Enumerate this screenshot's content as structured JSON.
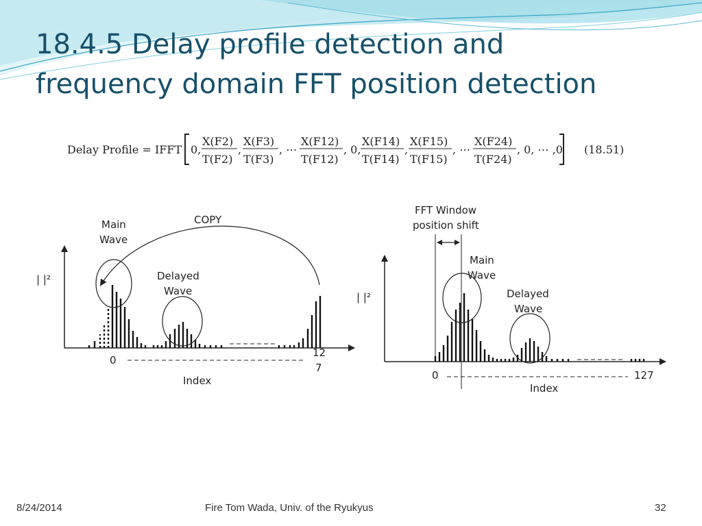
{
  "title": {
    "line1": "18.4.5 Delay profile detection and",
    "line2": "frequency domain FFT position detection"
  },
  "formula": {
    "lhs": "Delay Profile = IFFT",
    "open": "0,",
    "terms": [
      {
        "num": "X(F2)",
        "den": "T(F2)"
      },
      {
        "num": "X(F3)",
        "den": "T(F3)"
      },
      {
        "num": "X(F12)",
        "den": "T(F12)"
      },
      {
        "num": "X(F14)",
        "den": "T(F14)"
      },
      {
        "num": "X(F15)",
        "den": "T(F15)"
      },
      {
        "num": "X(F24)",
        "den": "T(F24)"
      }
    ],
    "sep": ",",
    "dots": ", ⋯",
    "mid_zero": ", 0,",
    "tail": ", 0, ⋯ ,0",
    "eqno": "(18.51)"
  },
  "figure_left": {
    "ylabel": "|  |²",
    "main_wave": [
      "Main",
      "Wave"
    ],
    "copy_label": "COPY",
    "delayed_wave": [
      "Delayed",
      "Wave"
    ],
    "x_start": "0",
    "x_end": [
      "12",
      "7"
    ],
    "xlabel": "Index"
  },
  "figure_right": {
    "shift_label": [
      "FFT Window",
      "position shift"
    ],
    "ylabel": "|  |²",
    "main_wave": [
      "Main",
      "Wave"
    ],
    "delayed_wave": [
      "Delayed",
      "Wave"
    ],
    "x_start": "0",
    "x_end": "127",
    "xlabel": "Index"
  },
  "footer": {
    "date": "8/24/2014",
    "author": "Fire Tom Wada, Univ. of the Ryukyus",
    "page": "32"
  },
  "colors": {
    "title": "#17506b",
    "wave_light": "#bfe8ef",
    "wave_mid": "#7fcfdf",
    "wave_line": "#3aa6c4"
  }
}
